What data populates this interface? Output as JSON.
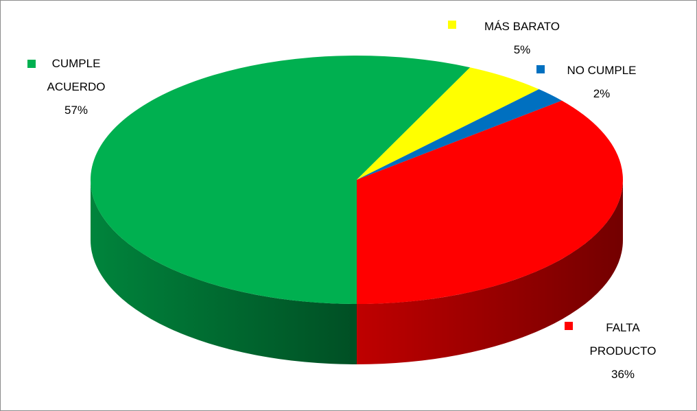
{
  "chart_data": {
    "type": "pie",
    "categories": [
      "CUMPLE ACUERDO",
      "MÁS BARATO",
      "NO CUMPLE",
      "FALTA PRODUCTO"
    ],
    "values": [
      57,
      5,
      2,
      36
    ],
    "value_labels": [
      "57%",
      "5%",
      "2%",
      "36%"
    ],
    "colors": [
      "#00b050",
      "#ffff00",
      "#0070c0",
      "#ff0000"
    ]
  }
}
